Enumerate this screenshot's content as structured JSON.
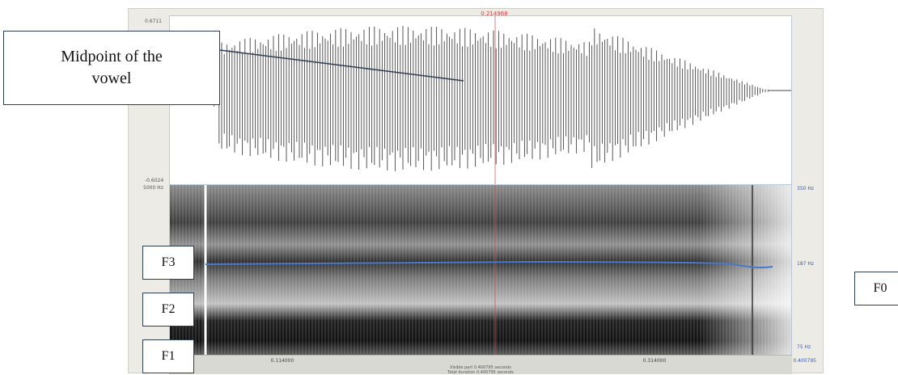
{
  "annotations": {
    "midpoint_line1": "Midpoint of the",
    "midpoint_line2": "vowel",
    "f3": "F3",
    "f2": "F2",
    "f1": "F1",
    "f0": "F0"
  },
  "waveform": {
    "cursor_time": "0.214968",
    "amp_max": "0.6711",
    "amp_min": "-0.6024"
  },
  "spectrogram": {
    "freq_max_left": "5000 Hz",
    "freq_max_right": "350 Hz",
    "freq_mid_right": "187 Hz",
    "freq_min_right": "75 Hz",
    "pitch_color": "#4a78c8"
  },
  "bottom_bar": {
    "tick_left": "0.114000",
    "tick_right": "0.314000",
    "visible_part": "Visible part 0.400795 seconds",
    "total_duration": "0.400795",
    "status_second": "Total duration 0.400795 seconds"
  }
}
